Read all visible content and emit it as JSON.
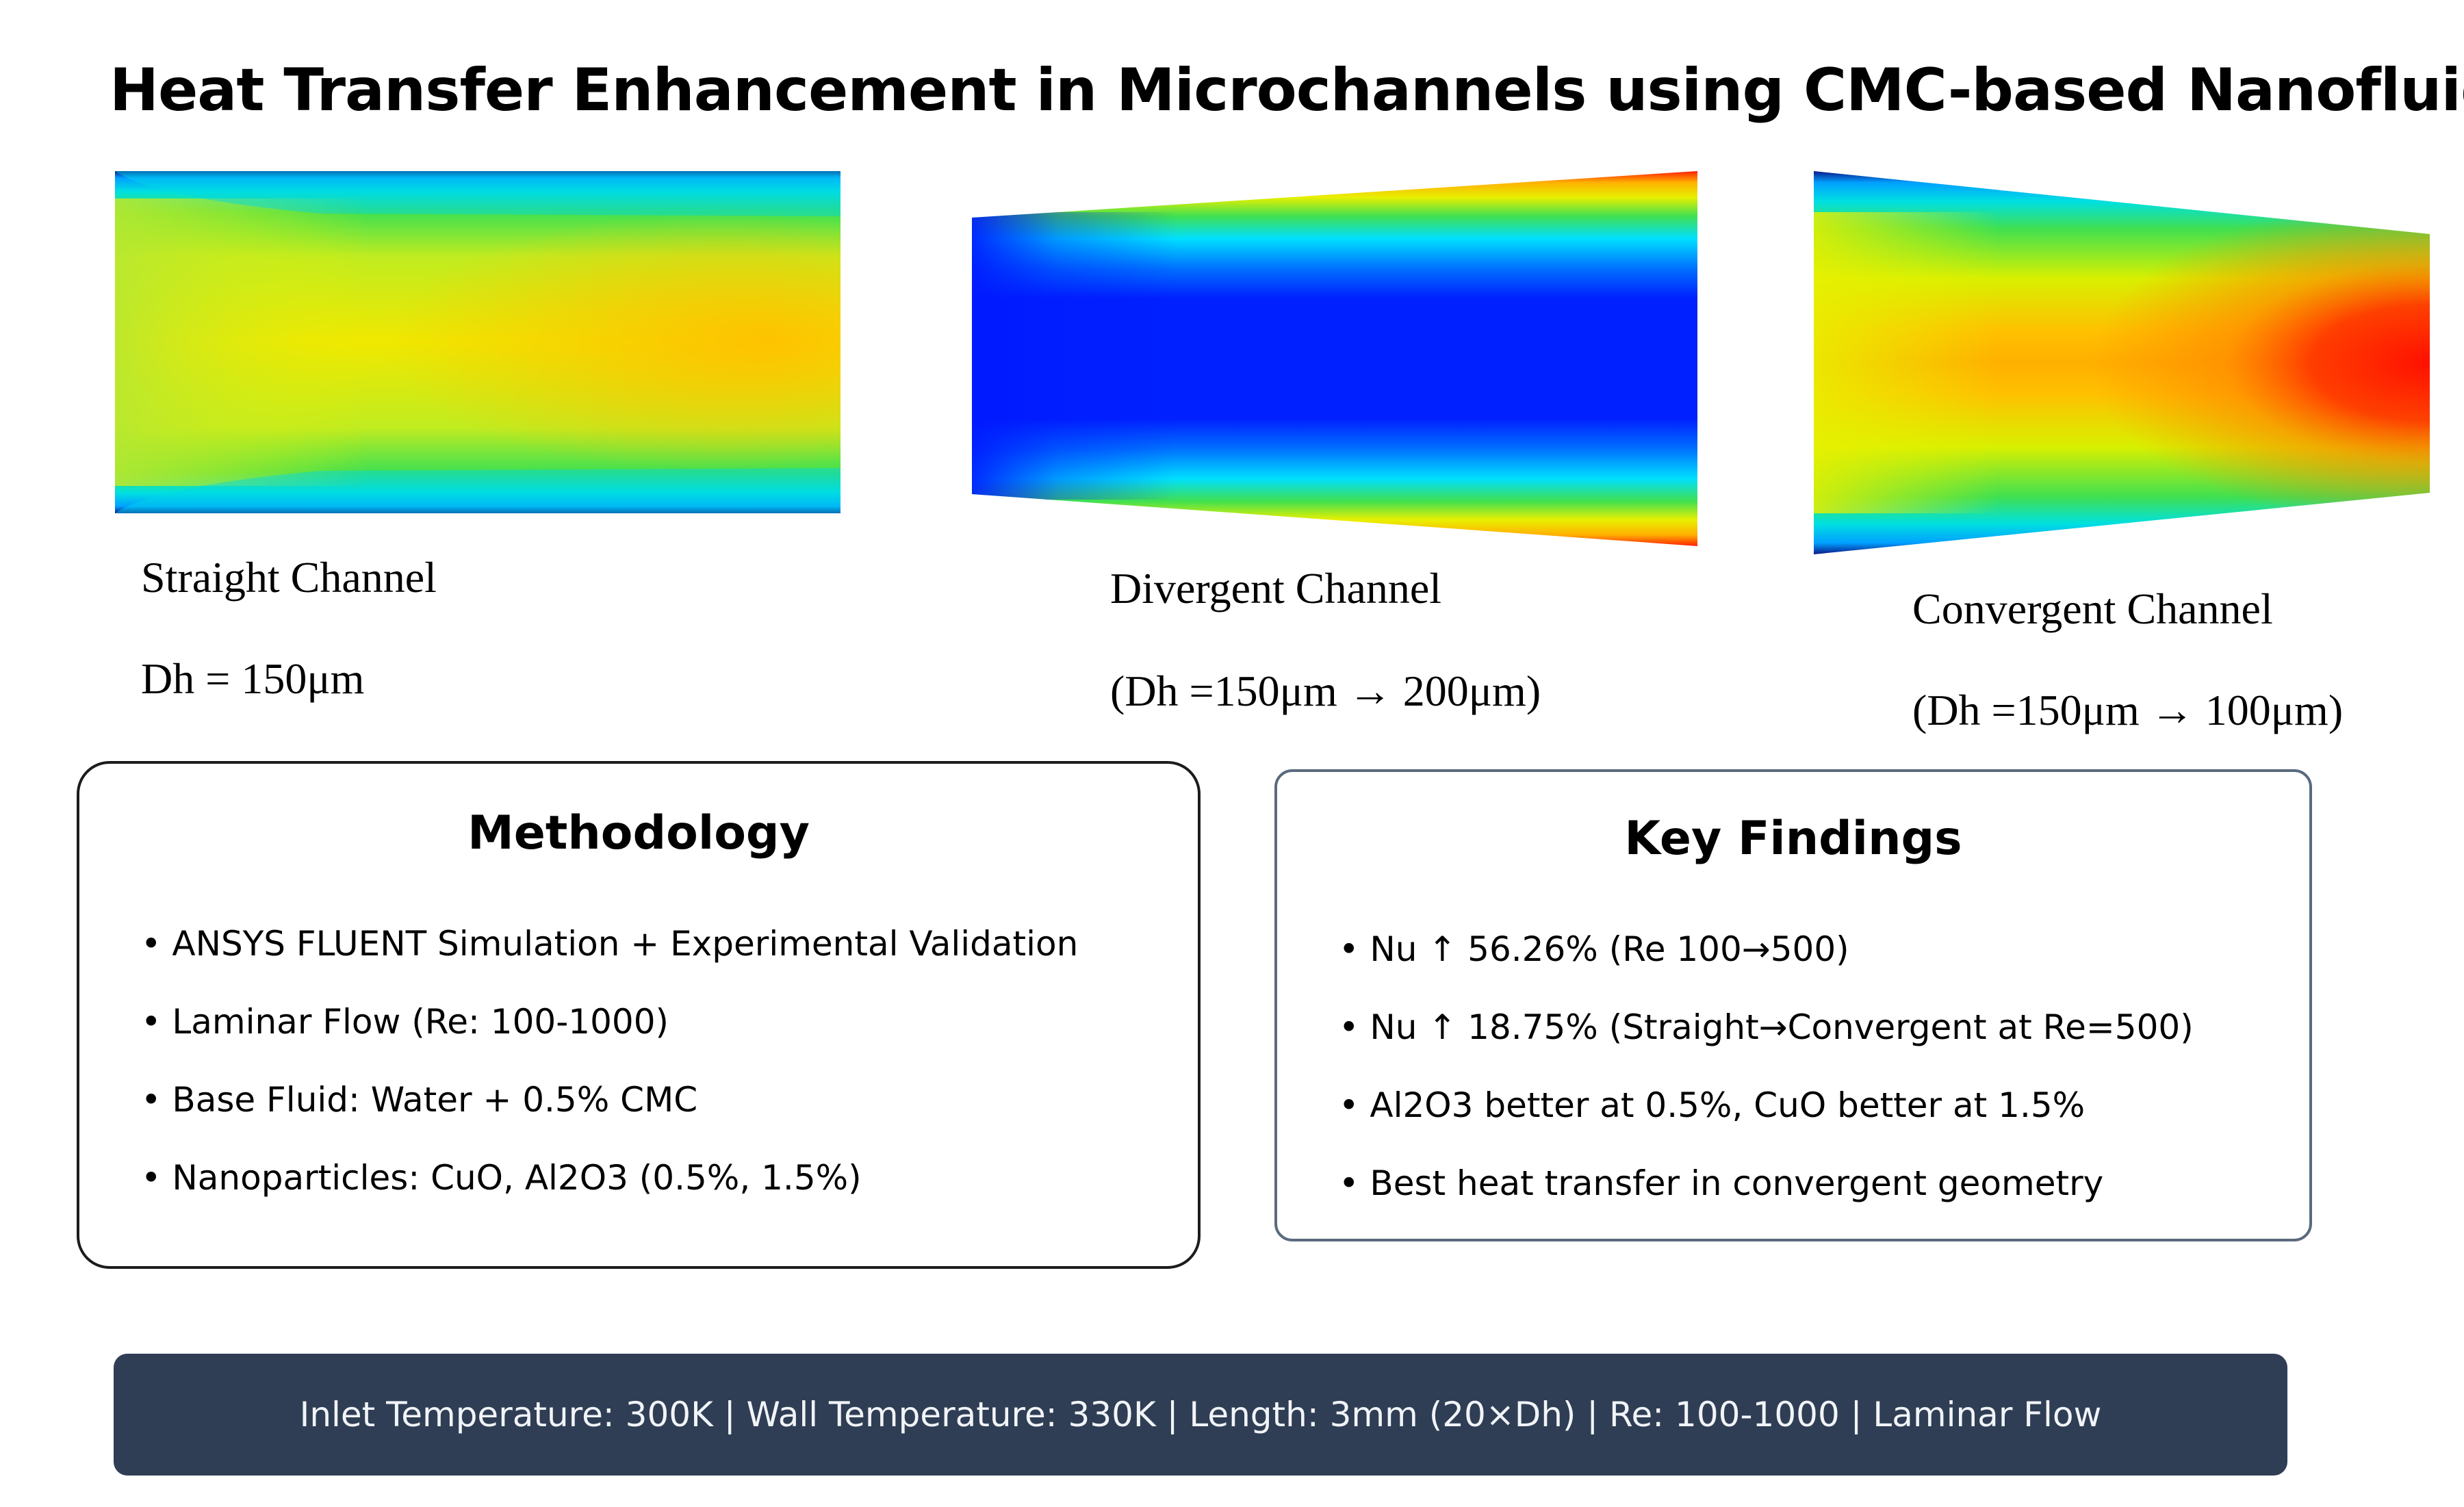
{
  "title": "Heat Transfer Enhancement in Microchannels using CMC-based Nanofluids",
  "channels": [
    {
      "name": "Straight Channel",
      "dimension": "Dh = 150μm"
    },
    {
      "name": "Divergent Channel",
      "dimension": "(Dh =150μm → 200μm)"
    },
    {
      "name": "Convergent Channel",
      "dimension": "(Dh =150μm → 100μm)"
    }
  ],
  "methodology": {
    "title": "Methodology",
    "items": [
      "ANSYS FLUENT Simulation + Experimental Validation",
      "Laminar Flow (Re: 100-1000)",
      "Base Fluid: Water + 0.5% CMC",
      "Nanoparticles: CuO, Al2O3 (0.5%, 1.5%)"
    ]
  },
  "findings": {
    "title": "Key Findings",
    "items": [
      "Nu ↑ 56.26% (Re 100→500)",
      "Nu ↑ 18.75% (Straight→Convergent at Re=500)",
      "Al2O3 better at 0.5%, CuO better at 1.5%",
      "Best heat transfer in convergent geometry"
    ]
  },
  "footer": "Inlet Temperature: 300K | Wall Temperature: 330K | Length: 3mm (20×Dh) | Re: 100-1000 | Laminar Flow",
  "colors": {
    "footer_bg": "#2f3e54",
    "contour_blue": "#0018ff",
    "contour_cyan": "#00e0ff",
    "contour_green": "#20e040",
    "contour_yellow": "#e6f000",
    "contour_orange": "#ffb000",
    "contour_red": "#ff1000"
  }
}
